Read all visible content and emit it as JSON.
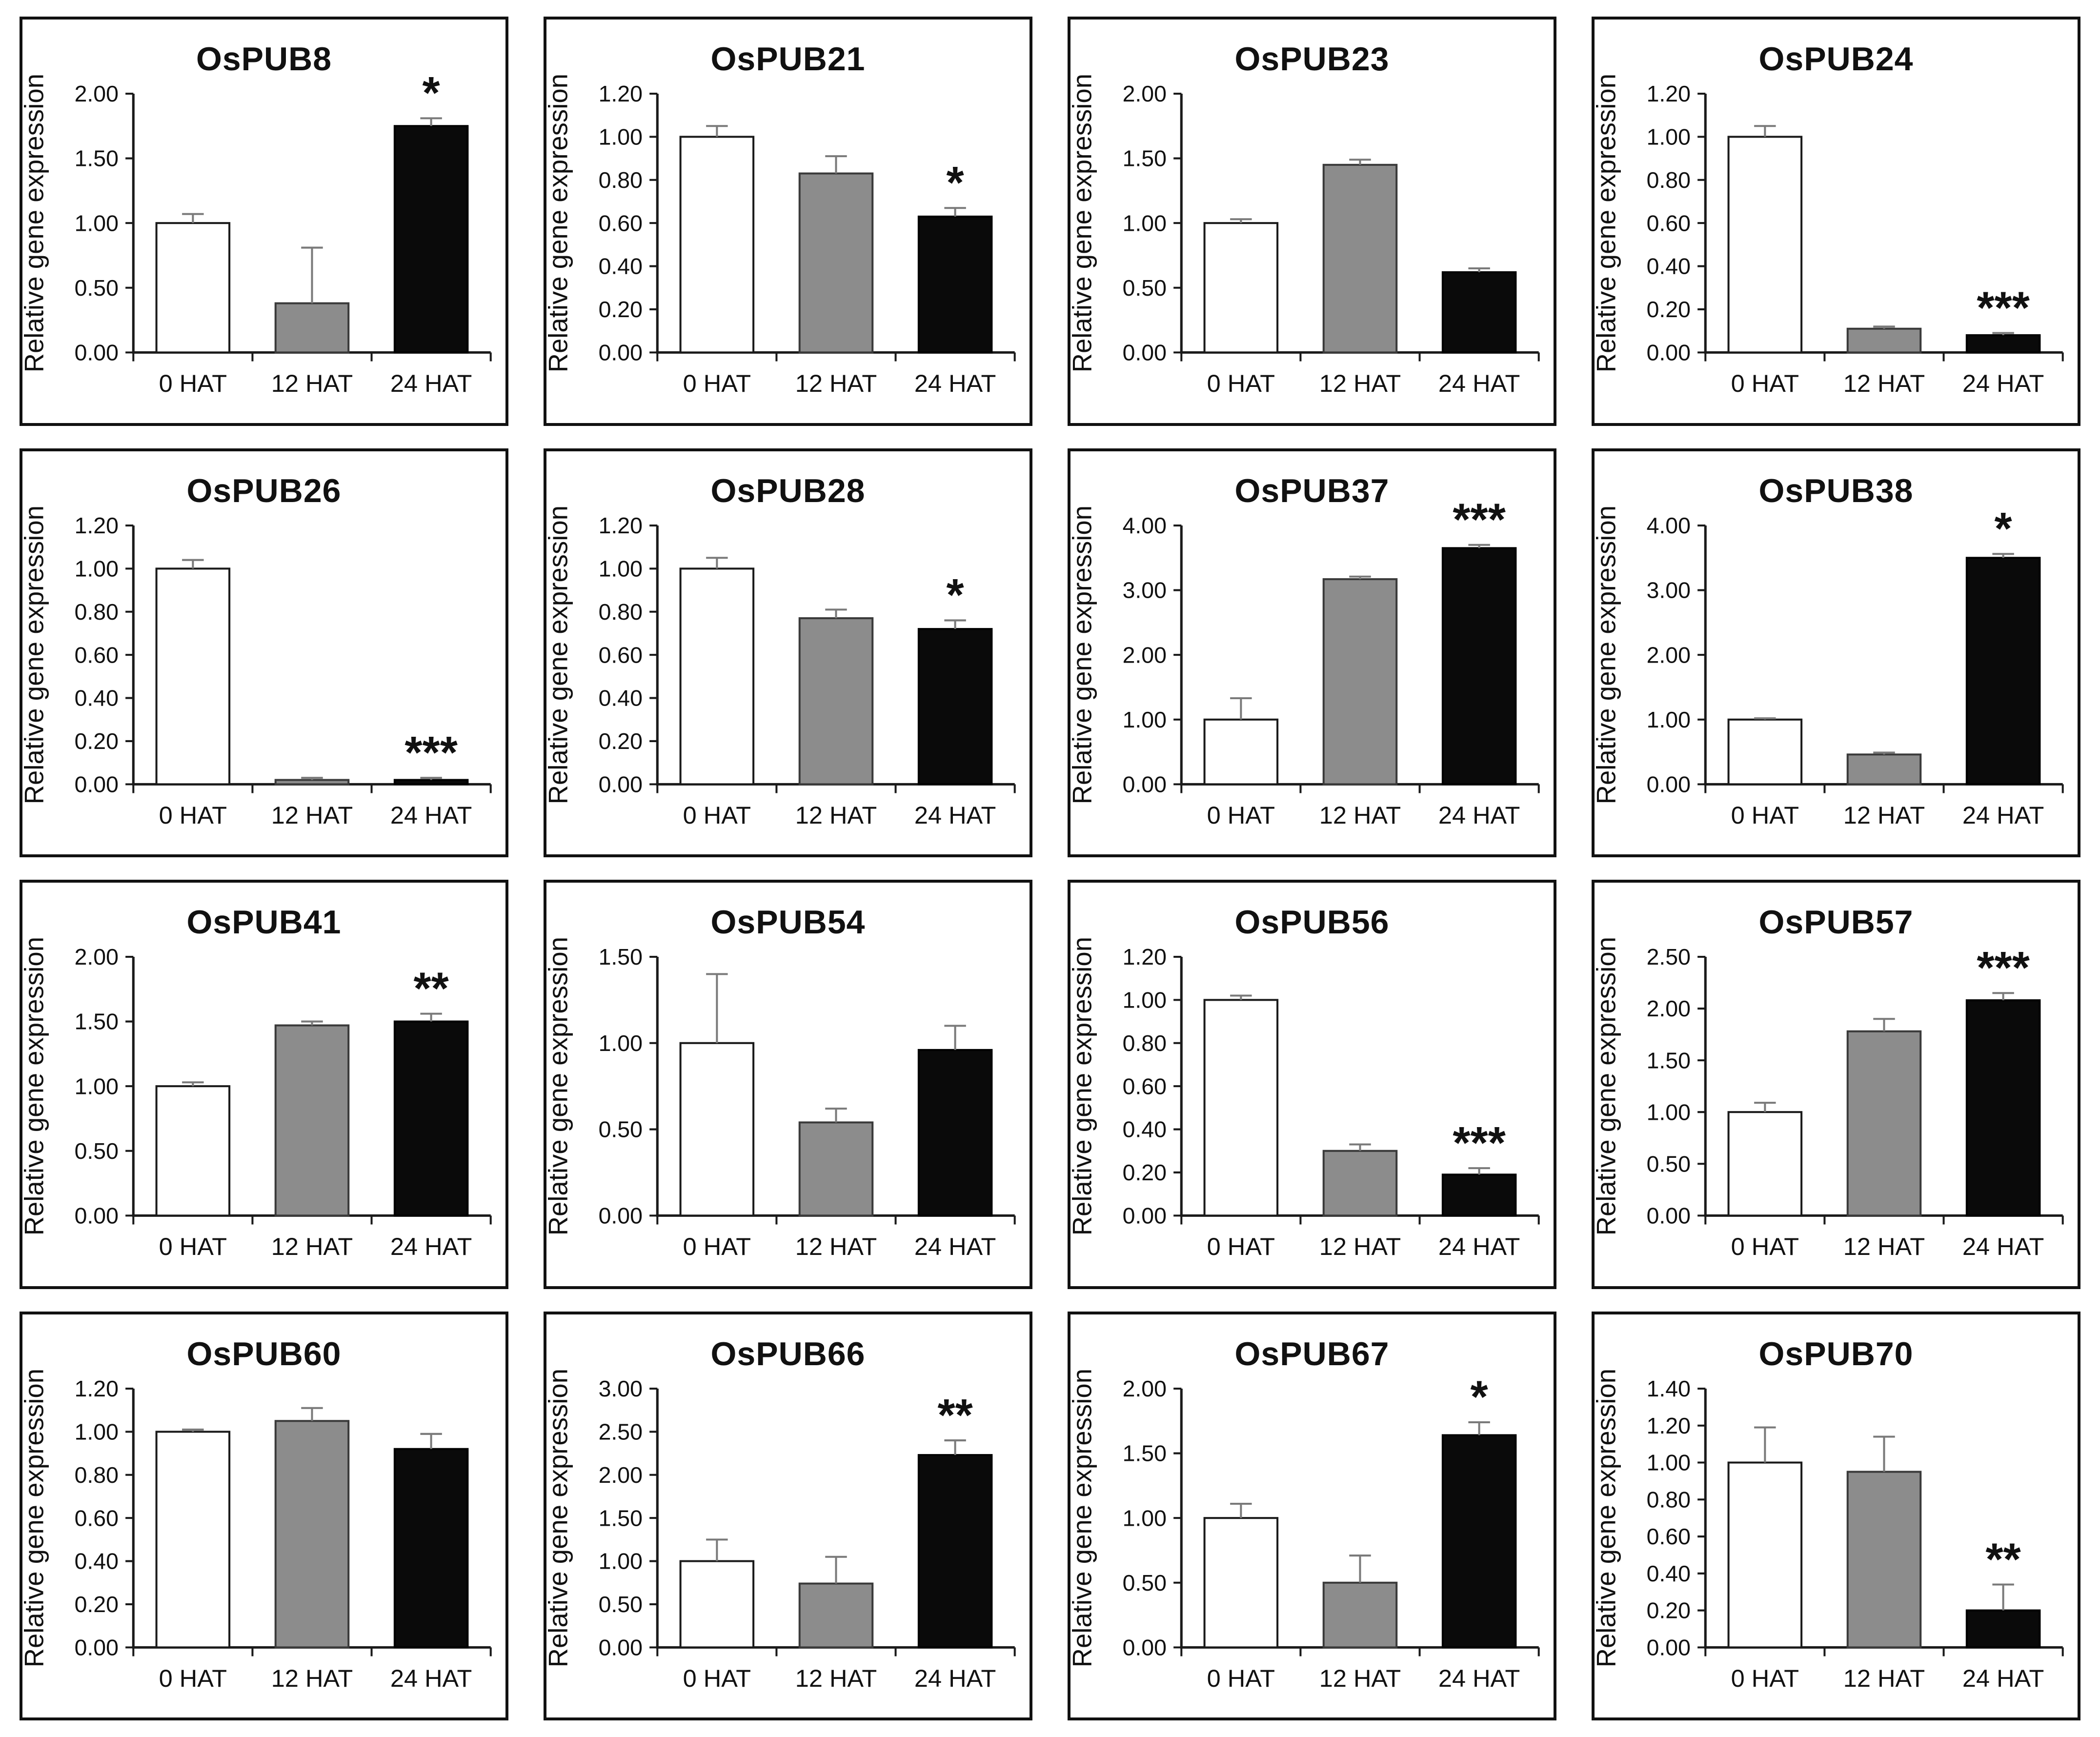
{
  "chart_data": {
    "type": "bar",
    "layout": "4x4 grid of single-series bar charts with error bars",
    "categories": [
      "0 HAT",
      "12 HAT",
      "24 HAT"
    ],
    "ylabel": "Relative gene expression",
    "bar_colors": [
      "#ffffff",
      "#8c8c8c",
      "#0a0a0a"
    ],
    "bar_border_colors": [
      "#1a1a1a",
      "#3a3a3a",
      "#000000"
    ],
    "error_bar_color": "#7a7a7a",
    "axis_color": "#1a1a1a",
    "grid": "off",
    "legend": "none",
    "panels": [
      {
        "title": "OsPUB8",
        "ylim": [
          0,
          2.0
        ],
        "ytick_step": 0.5,
        "values": [
          1.0,
          0.38,
          1.75
        ],
        "errors": [
          0.07,
          0.43,
          0.06
        ],
        "significance": "*",
        "significance_index": 2
      },
      {
        "title": "OsPUB21",
        "ylim": [
          0,
          1.2
        ],
        "ytick_step": 0.2,
        "values": [
          1.0,
          0.83,
          0.63
        ],
        "errors": [
          0.05,
          0.08,
          0.04
        ],
        "significance": "*",
        "significance_index": 2
      },
      {
        "title": "OsPUB23",
        "ylim": [
          0,
          2.0
        ],
        "ytick_step": 0.5,
        "values": [
          1.0,
          1.45,
          0.62
        ],
        "errors": [
          0.03,
          0.04,
          0.03
        ],
        "significance": "",
        "significance_index": 2
      },
      {
        "title": "OsPUB24",
        "ylim": [
          0,
          1.2
        ],
        "ytick_step": 0.2,
        "values": [
          1.0,
          0.11,
          0.08
        ],
        "errors": [
          0.05,
          0.01,
          0.01
        ],
        "significance": "***",
        "significance_index": 2
      },
      {
        "title": "OsPUB26",
        "ylim": [
          0,
          1.2
        ],
        "ytick_step": 0.2,
        "values": [
          1.0,
          0.02,
          0.02
        ],
        "errors": [
          0.04,
          0.01,
          0.01
        ],
        "significance": "***",
        "significance_index": 2
      },
      {
        "title": "OsPUB28",
        "ylim": [
          0,
          1.2
        ],
        "ytick_step": 0.2,
        "values": [
          1.0,
          0.77,
          0.72
        ],
        "errors": [
          0.05,
          0.04,
          0.04
        ],
        "significance": "*",
        "significance_index": 2
      },
      {
        "title": "OsPUB37",
        "ylim": [
          0,
          4.0
        ],
        "ytick_step": 1.0,
        "values": [
          1.0,
          3.17,
          3.65
        ],
        "errors": [
          0.33,
          0.04,
          0.05
        ],
        "significance": "***",
        "significance_index": 2
      },
      {
        "title": "OsPUB38",
        "ylim": [
          0,
          4.0
        ],
        "ytick_step": 1.0,
        "values": [
          1.0,
          0.46,
          3.5
        ],
        "errors": [
          0.02,
          0.03,
          0.06
        ],
        "significance": "*",
        "significance_index": 2
      },
      {
        "title": "OsPUB41",
        "ylim": [
          0,
          2.0
        ],
        "ytick_step": 0.5,
        "values": [
          1.0,
          1.47,
          1.5
        ],
        "errors": [
          0.03,
          0.03,
          0.06
        ],
        "significance": "**",
        "significance_index": 2
      },
      {
        "title": "OsPUB54",
        "ylim": [
          0,
          1.5
        ],
        "ytick_step": 0.5,
        "values": [
          1.0,
          0.54,
          0.96
        ],
        "errors": [
          0.4,
          0.08,
          0.14
        ],
        "significance": "",
        "significance_index": 2
      },
      {
        "title": "OsPUB56",
        "ylim": [
          0,
          1.2
        ],
        "ytick_step": 0.2,
        "values": [
          1.0,
          0.3,
          0.19
        ],
        "errors": [
          0.02,
          0.03,
          0.03
        ],
        "significance": "***",
        "significance_index": 2
      },
      {
        "title": "OsPUB57",
        "ylim": [
          0,
          2.5
        ],
        "ytick_step": 0.5,
        "values": [
          1.0,
          1.78,
          2.08
        ],
        "errors": [
          0.09,
          0.12,
          0.07
        ],
        "significance": "***",
        "significance_index": 2
      },
      {
        "title": "OsPUB60",
        "ylim": [
          0,
          1.2
        ],
        "ytick_step": 0.2,
        "values": [
          1.0,
          1.05,
          0.92
        ],
        "errors": [
          0.01,
          0.06,
          0.07
        ],
        "significance": "",
        "significance_index": 2
      },
      {
        "title": "OsPUB66",
        "ylim": [
          0,
          3.0
        ],
        "ytick_step": 0.5,
        "values": [
          1.0,
          0.74,
          2.23
        ],
        "errors": [
          0.25,
          0.31,
          0.17
        ],
        "significance": "**",
        "significance_index": 2
      },
      {
        "title": "OsPUB67",
        "ylim": [
          0,
          2.0
        ],
        "ytick_step": 0.5,
        "values": [
          1.0,
          0.5,
          1.64
        ],
        "errors": [
          0.11,
          0.21,
          0.1
        ],
        "significance": "*",
        "significance_index": 2
      },
      {
        "title": "OsPUB70",
        "ylim": [
          0,
          1.4
        ],
        "ytick_step": 0.2,
        "values": [
          1.0,
          0.95,
          0.2
        ],
        "errors": [
          0.19,
          0.19,
          0.14
        ],
        "significance": "**",
        "significance_index": 2
      }
    ]
  }
}
